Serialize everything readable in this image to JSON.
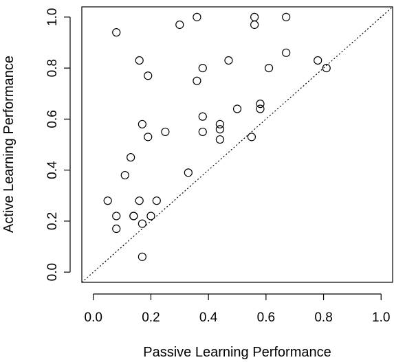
{
  "chart_data": {
    "type": "scatter",
    "title": "",
    "xlabel": "Passive Learning Performance",
    "ylabel": "Active Learning Performance",
    "xlim": [
      -0.04,
      1.04
    ],
    "ylim": [
      -0.04,
      1.04
    ],
    "x_ticks": [
      0.0,
      0.2,
      0.4,
      0.6,
      0.8,
      1.0
    ],
    "y_ticks": [
      0.0,
      0.2,
      0.4,
      0.6,
      0.8,
      1.0
    ],
    "x_tick_labels": [
      "0.0",
      "0.2",
      "0.4",
      "0.6",
      "0.8",
      "1.0"
    ],
    "y_tick_labels": [
      "0.0",
      "0.2",
      "0.4",
      "0.6",
      "0.8",
      "1.0"
    ],
    "grid": false,
    "reference_line": {
      "slope": 1,
      "intercept": 0,
      "style": "dotted"
    },
    "marker": "open-circle",
    "points": [
      {
        "x": 0.08,
        "y": 0.94
      },
      {
        "x": 0.16,
        "y": 0.83
      },
      {
        "x": 0.19,
        "y": 0.77
      },
      {
        "x": 0.3,
        "y": 0.97
      },
      {
        "x": 0.36,
        "y": 1.0
      },
      {
        "x": 0.56,
        "y": 1.0
      },
      {
        "x": 0.56,
        "y": 0.97
      },
      {
        "x": 0.67,
        "y": 1.0
      },
      {
        "x": 0.38,
        "y": 0.8
      },
      {
        "x": 0.47,
        "y": 0.83
      },
      {
        "x": 0.36,
        "y": 0.75
      },
      {
        "x": 0.61,
        "y": 0.8
      },
      {
        "x": 0.67,
        "y": 0.86
      },
      {
        "x": 0.78,
        "y": 0.83
      },
      {
        "x": 0.81,
        "y": 0.8
      },
      {
        "x": 0.38,
        "y": 0.61
      },
      {
        "x": 0.5,
        "y": 0.64
      },
      {
        "x": 0.58,
        "y": 0.66
      },
      {
        "x": 0.58,
        "y": 0.64
      },
      {
        "x": 0.17,
        "y": 0.58
      },
      {
        "x": 0.25,
        "y": 0.55
      },
      {
        "x": 0.19,
        "y": 0.53
      },
      {
        "x": 0.38,
        "y": 0.55
      },
      {
        "x": 0.44,
        "y": 0.58
      },
      {
        "x": 0.44,
        "y": 0.56
      },
      {
        "x": 0.44,
        "y": 0.52
      },
      {
        "x": 0.55,
        "y": 0.53
      },
      {
        "x": 0.13,
        "y": 0.45
      },
      {
        "x": 0.11,
        "y": 0.38
      },
      {
        "x": 0.33,
        "y": 0.39
      },
      {
        "x": 0.05,
        "y": 0.28
      },
      {
        "x": 0.16,
        "y": 0.28
      },
      {
        "x": 0.22,
        "y": 0.28
      },
      {
        "x": 0.08,
        "y": 0.22
      },
      {
        "x": 0.14,
        "y": 0.22
      },
      {
        "x": 0.14,
        "y": 0.22
      },
      {
        "x": 0.2,
        "y": 0.22
      },
      {
        "x": 0.17,
        "y": 0.19
      },
      {
        "x": 0.08,
        "y": 0.17
      },
      {
        "x": 0.17,
        "y": 0.06
      }
    ]
  }
}
